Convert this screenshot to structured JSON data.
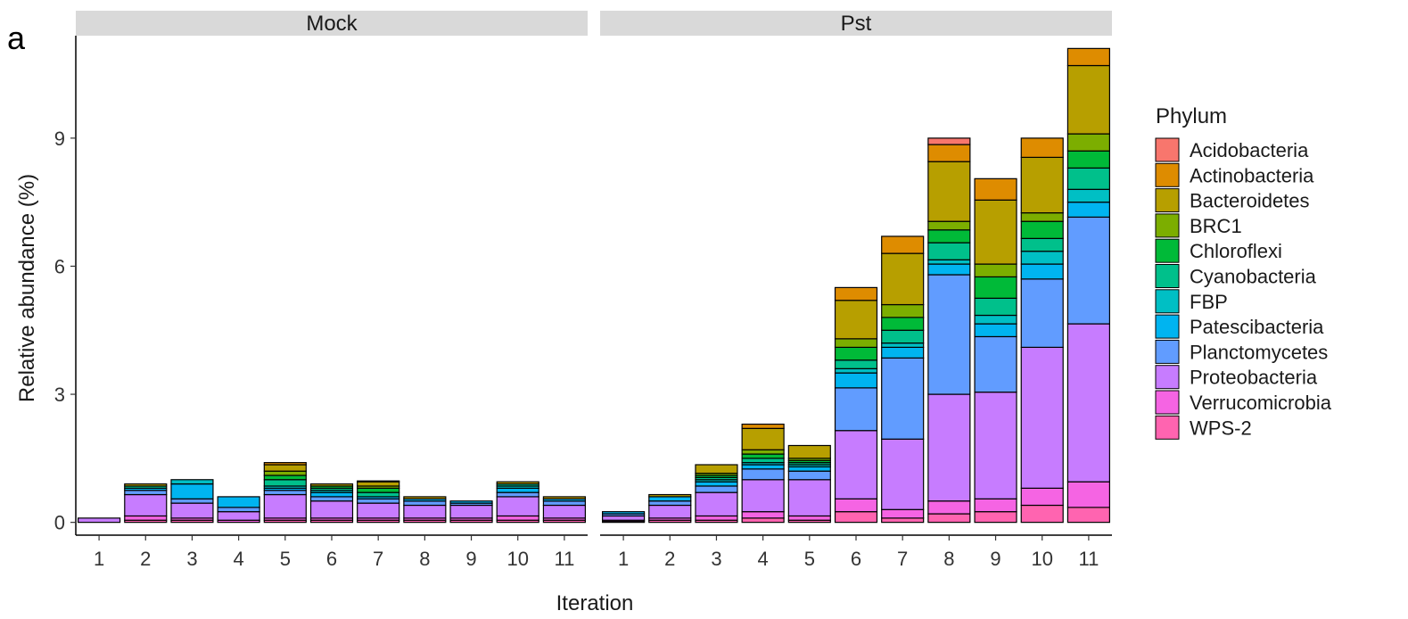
{
  "chart_data": {
    "type": "bar",
    "stacked": true,
    "panel_letter": "a",
    "facets": [
      "Mock",
      "Pst"
    ],
    "categories": [
      "1",
      "2",
      "3",
      "4",
      "5",
      "6",
      "7",
      "8",
      "9",
      "10",
      "11"
    ],
    "xlabel": "Iteration",
    "ylabel": "Relative abundance (%)",
    "yticks": [
      0,
      3,
      6,
      9
    ],
    "ylim": [
      -0.3,
      11.4
    ],
    "grid": false,
    "legend": {
      "title": "Phylum",
      "position": "right",
      "entries": [
        {
          "name": "Acidobacteria",
          "color": "#F8766D"
        },
        {
          "name": "Actinobacteria",
          "color": "#DE8C00"
        },
        {
          "name": "Bacteroidetes",
          "color": "#B79F00"
        },
        {
          "name": "BRC1",
          "color": "#7CAE00"
        },
        {
          "name": "Chloroflexi",
          "color": "#00BA38"
        },
        {
          "name": "Cyanobacteria",
          "color": "#00C08B"
        },
        {
          "name": "FBP",
          "color": "#00BFC4"
        },
        {
          "name": "Patescibacteria",
          "color": "#00B4F0"
        },
        {
          "name": "Planctomycetes",
          "color": "#619CFF"
        },
        {
          "name": "Proteobacteria",
          "color": "#C77CFF"
        },
        {
          "name": "Verrucomicrobia",
          "color": "#F564E3"
        },
        {
          "name": "WPS-2",
          "color": "#FF64B0"
        }
      ]
    },
    "series_by_facet": {
      "Mock": [
        {
          "name": "Acidobacteria",
          "values": [
            0,
            0,
            0,
            0,
            0,
            0,
            0,
            0,
            0,
            0,
            0
          ]
        },
        {
          "name": "Actinobacteria",
          "values": [
            0,
            0,
            0,
            0,
            0.05,
            0,
            0.02,
            0,
            0,
            0,
            0
          ]
        },
        {
          "name": "Bacteroidetes",
          "values": [
            0,
            0.05,
            0,
            0,
            0.15,
            0.05,
            0.1,
            0.05,
            0,
            0.05,
            0.05
          ]
        },
        {
          "name": "BRC1",
          "values": [
            0,
            0,
            0,
            0,
            0.1,
            0,
            0.05,
            0,
            0,
            0,
            0
          ]
        },
        {
          "name": "Chloroflexi",
          "values": [
            0,
            0,
            0,
            0,
            0.1,
            0.05,
            0.1,
            0,
            0,
            0,
            0
          ]
        },
        {
          "name": "Cyanobacteria",
          "values": [
            0,
            0.05,
            0,
            0,
            0.15,
            0.05,
            0.1,
            0,
            0,
            0.05,
            0
          ]
        },
        {
          "name": "FBP",
          "values": [
            0,
            0,
            0.1,
            0,
            0.05,
            0.05,
            0,
            0,
            0,
            0.05,
            0
          ]
        },
        {
          "name": "Patescibacteria",
          "values": [
            0,
            0.05,
            0.35,
            0.25,
            0.05,
            0.1,
            0.05,
            0.05,
            0.05,
            0.1,
            0.05
          ]
        },
        {
          "name": "Planctomycetes",
          "values": [
            0,
            0.1,
            0.1,
            0.1,
            0.1,
            0.1,
            0.1,
            0.1,
            0.05,
            0.1,
            0.1
          ]
        },
        {
          "name": "Proteobacteria",
          "values": [
            0.1,
            0.5,
            0.35,
            0.2,
            0.55,
            0.4,
            0.35,
            0.3,
            0.3,
            0.45,
            0.3
          ]
        },
        {
          "name": "Verrucomicrobia",
          "values": [
            0,
            0.1,
            0.05,
            0.05,
            0.05,
            0.05,
            0.05,
            0.05,
            0.05,
            0.1,
            0.05
          ]
        },
        {
          "name": "WPS-2",
          "values": [
            0,
            0.05,
            0.05,
            0,
            0.05,
            0.05,
            0.05,
            0.05,
            0.05,
            0.05,
            0.05
          ]
        }
      ],
      "Pst": [
        {
          "name": "Acidobacteria",
          "values": [
            0,
            0,
            0,
            0,
            0,
            0,
            0,
            0.15,
            0,
            0,
            0
          ]
        },
        {
          "name": "Actinobacteria",
          "values": [
            0,
            0,
            0,
            0.1,
            0,
            0.3,
            0.4,
            0.4,
            0.5,
            0.45,
            0.4
          ]
        },
        {
          "name": "Bacteroidetes",
          "values": [
            0,
            0.05,
            0.2,
            0.5,
            0.3,
            0.9,
            1.2,
            1.4,
            1.5,
            1.3,
            1.6
          ]
        },
        {
          "name": "BRC1",
          "values": [
            0,
            0,
            0.05,
            0.1,
            0.05,
            0.2,
            0.3,
            0.2,
            0.3,
            0.2,
            0.4
          ]
        },
        {
          "name": "Chloroflexi",
          "values": [
            0,
            0,
            0.05,
            0.1,
            0.05,
            0.3,
            0.3,
            0.3,
            0.5,
            0.4,
            0.4
          ]
        },
        {
          "name": "Cyanobacteria",
          "values": [
            0,
            0,
            0.05,
            0.1,
            0.05,
            0.2,
            0.3,
            0.4,
            0.4,
            0.3,
            0.5
          ]
        },
        {
          "name": "FBP",
          "values": [
            0,
            0,
            0.05,
            0.05,
            0.05,
            0.1,
            0.1,
            0.1,
            0.2,
            0.3,
            0.3
          ]
        },
        {
          "name": "Patescibacteria",
          "values": [
            0.05,
            0.1,
            0.1,
            0.1,
            0.1,
            0.35,
            0.25,
            0.25,
            0.3,
            0.35,
            0.35
          ]
        },
        {
          "name": "Planctomycetes",
          "values": [
            0.05,
            0.1,
            0.15,
            0.25,
            0.2,
            1.0,
            1.9,
            2.8,
            1.3,
            1.6,
            2.5
          ]
        },
        {
          "name": "Proteobacteria",
          "values": [
            0.1,
            0.3,
            0.55,
            0.75,
            0.85,
            1.6,
            1.65,
            2.5,
            2.5,
            3.3,
            3.7
          ]
        },
        {
          "name": "Verrucomicrobia",
          "values": [
            0.03,
            0.05,
            0.1,
            0.15,
            0.1,
            0.3,
            0.2,
            0.3,
            0.3,
            0.4,
            0.6
          ]
        },
        {
          "name": "WPS-2",
          "values": [
            0.02,
            0.05,
            0.05,
            0.1,
            0.05,
            0.25,
            0.1,
            0.2,
            0.25,
            0.4,
            0.35
          ]
        }
      ]
    }
  }
}
